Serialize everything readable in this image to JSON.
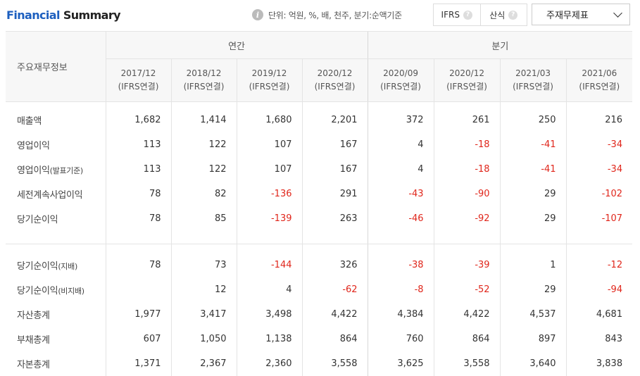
{
  "header": {
    "title_part1": "Financial",
    "title_part2": " Summary",
    "unit_text": "단위: 억원, %, 배, 천주, 분기:순액기준",
    "toggle": {
      "ifrs_label": "IFRS",
      "gaap_label": "산식"
    },
    "dropdown_label": "주재무제표"
  },
  "table": {
    "rowhead": "주요재무정보",
    "annual_label": "연간",
    "quarter_label": "분기",
    "columns": [
      {
        "period": "2017/12",
        "basis": "(IFRS연결)"
      },
      {
        "period": "2018/12",
        "basis": "(IFRS연결)"
      },
      {
        "period": "2019/12",
        "basis": "(IFRS연결)"
      },
      {
        "period": "2020/12",
        "basis": "(IFRS연결)"
      },
      {
        "period": "2020/09",
        "basis": "(IFRS연결)"
      },
      {
        "period": "2020/12",
        "basis": "(IFRS연결)"
      },
      {
        "period": "2021/03",
        "basis": "(IFRS연결)"
      },
      {
        "period": "2021/06",
        "basis": "(IFRS연결)"
      }
    ],
    "rows": [
      {
        "label": "매출액",
        "label_small": "",
        "values": [
          "1,682",
          "1,414",
          "1,680",
          "2,201",
          "372",
          "261",
          "250",
          "216"
        ]
      },
      {
        "label": "영업이익",
        "label_small": "",
        "values": [
          "113",
          "122",
          "107",
          "167",
          "4",
          "-18",
          "-41",
          "-34"
        ]
      },
      {
        "label": "영업이익",
        "label_small": "(발표기준)",
        "values": [
          "113",
          "122",
          "107",
          "167",
          "4",
          "-18",
          "-41",
          "-34"
        ]
      },
      {
        "label": "세전계속사업이익",
        "label_small": "",
        "values": [
          "78",
          "82",
          "-136",
          "291",
          "-43",
          "-90",
          "29",
          "-102"
        ]
      },
      {
        "label": "당기순이익",
        "label_small": "",
        "values": [
          "78",
          "85",
          "-139",
          "263",
          "-46",
          "-92",
          "29",
          "-107"
        ]
      },
      {
        "label": "당기순이익",
        "label_small": "(지배)",
        "values": [
          "78",
          "73",
          "-144",
          "326",
          "-38",
          "-39",
          "1",
          "-12"
        ]
      },
      {
        "label": "당기순이익",
        "label_small": "(비지배)",
        "values": [
          "",
          "12",
          "4",
          "-62",
          "-8",
          "-52",
          "29",
          "-94"
        ]
      },
      {
        "label": "자산총계",
        "label_small": "",
        "values": [
          "1,977",
          "3,417",
          "3,498",
          "4,422",
          "4,384",
          "4,422",
          "4,537",
          "4,681"
        ]
      },
      {
        "label": "부채총계",
        "label_small": "",
        "values": [
          "607",
          "1,050",
          "1,138",
          "864",
          "760",
          "864",
          "897",
          "843"
        ]
      },
      {
        "label": "자본총계",
        "label_small": "",
        "values": [
          "1,371",
          "2,367",
          "2,360",
          "3,558",
          "3,625",
          "3,558",
          "3,640",
          "3,838"
        ]
      }
    ]
  }
}
